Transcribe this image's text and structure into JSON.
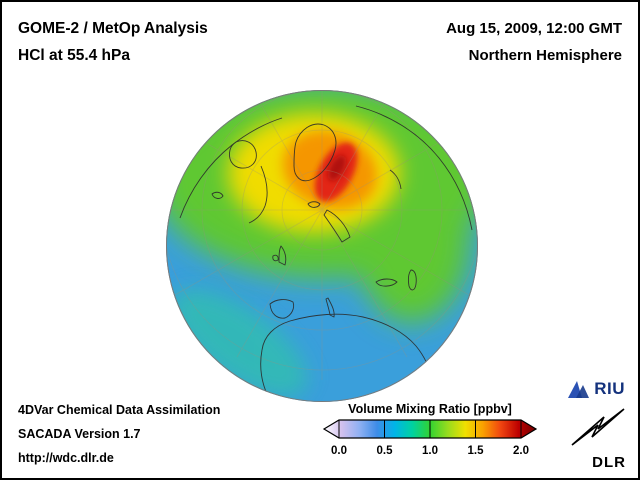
{
  "figure": {
    "background": "#ffffff",
    "frame_color": "#000000"
  },
  "header": {
    "title_line1": "GOME-2 / MetOp Analysis",
    "title_line2": "HCl at 55.4 hPa",
    "datetime": "Aug 15, 2009, 12:00 GMT",
    "hemisphere": "Northern Hemisphere"
  },
  "map": {
    "field_colors": {
      "low": "#3a9fdb",
      "coastal": "#2fc9a0",
      "mid": "#5ec832",
      "elevated": "#f0dc00",
      "high": "#f59600",
      "peak": "#e32817",
      "max": "#a80f0f"
    },
    "coastline_color": "#2b2b2b",
    "graticule_color": "#98917f"
  },
  "colorbar": {
    "title": "Volume Mixing Ratio [ppbv]",
    "ticks": [
      "0.0",
      "0.5",
      "1.0",
      "1.5",
      "2.0"
    ],
    "min": 0.0,
    "max": 2.0,
    "palette": [
      "#ffffff",
      "#d2c0ee",
      "#8fb0f2",
      "#3e8ce8",
      "#00b4e8",
      "#00d2a0",
      "#32d232",
      "#96dc1e",
      "#f0e000",
      "#faa000",
      "#f04610",
      "#be0000",
      "#700000"
    ]
  },
  "footer": {
    "line1": "4DVar Chemical Data Assimilation",
    "line2": "SACADA Version 1.7",
    "line3": "http://wdc.dlr.de"
  },
  "logos": {
    "riu_label": "RIU",
    "dlr_label": "DLR"
  }
}
